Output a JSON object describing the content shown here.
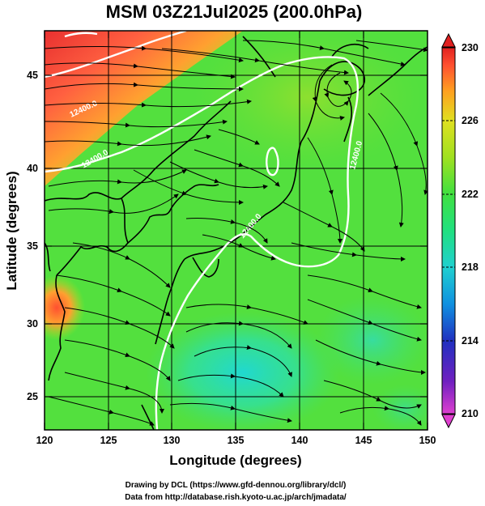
{
  "title": "MSM 03Z21Jul2025 (200.0hPa)",
  "x_axis": {
    "label": "Longitude (degrees)",
    "range": [
      120,
      150
    ],
    "ticks": [
      "120",
      "125",
      "130",
      "135",
      "140",
      "145",
      "150"
    ]
  },
  "y_axis": {
    "label": "Latitude  (degrees)",
    "range": [
      22.5,
      48
    ],
    "ticks": [
      "25",
      "30",
      "35",
      "40",
      "45"
    ]
  },
  "colorbar": {
    "range": [
      210,
      230
    ],
    "ticks": [
      "210",
      "214",
      "218",
      "222",
      "226",
      "230"
    ],
    "colors": [
      "#e040d0",
      "#7020c0",
      "#2030c0",
      "#1090e0",
      "#20d0d0",
      "#20e080",
      "#40e040",
      "#a0e020",
      "#e0e020",
      "#ffa020",
      "#ff5030",
      "#e02020"
    ]
  },
  "contours": {
    "labels": [
      "12400.0",
      "12400.0",
      "12400.0",
      "12400.0"
    ]
  },
  "credits": {
    "line1": "Drawing by DCL (https://www.gfd-dennou.org/library/dcl/)",
    "line2": "Data from http://database.rish.kyoto-u.ac.jp/arch/jmadata/"
  }
}
